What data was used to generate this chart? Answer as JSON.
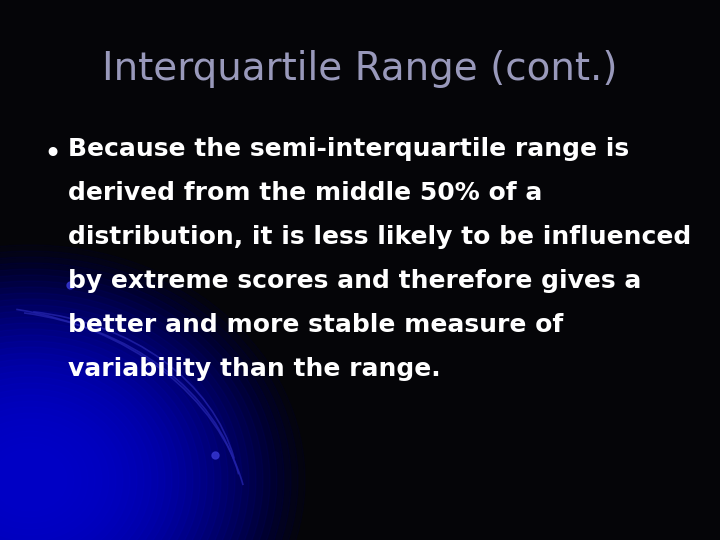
{
  "title": "Interquartile Range (cont.)",
  "title_color": "#9999bb",
  "title_fontsize": 28,
  "background_color": "#050508",
  "bullet_lines": [
    "Because the semi-interquartile range is",
    "derived from the middle 50% of a",
    "distribution, it is less likely to be influenced",
    "by extreme scores and therefore gives a",
    "better and more stable measure of",
    "variability than the range."
  ],
  "bullet_color": "#ffffff",
  "bullet_fontsize": 18,
  "bullet_marker_color": "#ffffff",
  "bullet_marker_fontsize": 22,
  "arc_color": "#2222aa",
  "arc_dot_color": "#3333cc",
  "glow_color": "#0000cc"
}
